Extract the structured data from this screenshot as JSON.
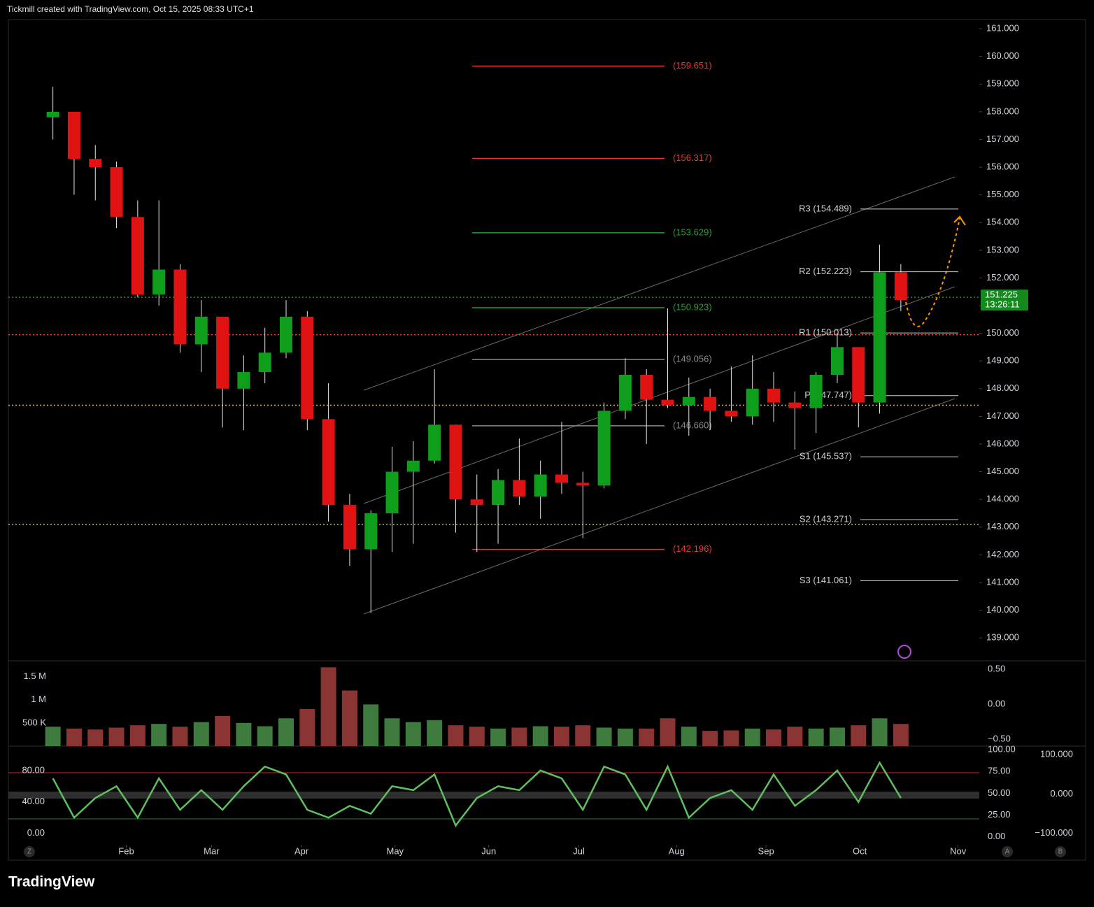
{
  "header": "Tickmill created with TradingView.com, Oct 15, 2025 08:33 UTC+1",
  "logo": "TradingView",
  "buttons": [
    "Z",
    "A",
    "B"
  ],
  "chart_data": [
    {
      "type": "candlestick",
      "up_color": "#0f9d1c",
      "down_color": "#e01212",
      "xlim": [
        -2.1,
        43.7
      ],
      "xticks": [
        {
          "value": 3.46,
          "label": "Feb"
        },
        {
          "value": 7.48,
          "label": "Mar"
        },
        {
          "value": 11.73,
          "label": "Apr"
        },
        {
          "value": 16.14,
          "label": "May"
        },
        {
          "value": 20.56,
          "label": "Jun"
        },
        {
          "value": 24.81,
          "label": "Jul"
        },
        {
          "value": 29.42,
          "label": "Aug"
        },
        {
          "value": 33.64,
          "label": "Sep"
        },
        {
          "value": 38.06,
          "label": "Oct"
        },
        {
          "value": 42.7,
          "label": "Nov"
        }
      ],
      "ylim": [
        138.17,
        161.33
      ],
      "yticks": [
        {
          "value": 139,
          "label": "139.000"
        },
        {
          "value": 140,
          "label": "140.000"
        },
        {
          "value": 141,
          "label": "141.000"
        },
        {
          "value": 142,
          "label": "142.000"
        },
        {
          "value": 143,
          "label": "143.000"
        },
        {
          "value": 144,
          "label": "144.000"
        },
        {
          "value": 145,
          "label": "145.000"
        },
        {
          "value": 146,
          "label": "146.000"
        },
        {
          "value": 147,
          "label": "147.000"
        },
        {
          "value": 148,
          "label": "148.000"
        },
        {
          "value": 149,
          "label": "149.000"
        },
        {
          "value": 150,
          "label": "150.000"
        },
        {
          "value": 151,
          "label": "151.000"
        },
        {
          "value": 152,
          "label": "152.000"
        },
        {
          "value": 153,
          "label": "153.000"
        },
        {
          "value": 154,
          "label": "154.000"
        },
        {
          "value": 155,
          "label": "155.000"
        },
        {
          "value": 156,
          "label": "156.000"
        },
        {
          "value": 157,
          "label": "157.000"
        },
        {
          "value": 158,
          "label": "158.000"
        },
        {
          "value": 159,
          "label": "159.000"
        },
        {
          "value": 160,
          "label": "160.000"
        },
        {
          "value": 161,
          "label": "161.000"
        }
      ],
      "open": [
        157.8,
        158.0,
        156.3,
        156.0,
        154.2,
        151.4,
        152.3,
        149.6,
        150.6,
        148.0,
        148.6,
        149.3,
        150.6,
        146.9,
        143.8,
        142.2,
        143.5,
        145.0,
        145.4,
        146.7,
        144.0,
        143.8,
        144.7,
        144.1,
        144.9,
        144.6,
        144.5,
        147.2,
        148.5,
        147.6,
        147.4,
        147.7,
        147.2,
        147.0,
        148.0,
        147.5,
        147.3,
        148.5,
        149.5,
        147.5,
        152.2
      ],
      "high": [
        158.9,
        158.0,
        156.8,
        156.2,
        154.8,
        154.8,
        152.5,
        151.2,
        150.6,
        149.2,
        150.2,
        151.2,
        150.8,
        148.2,
        144.2,
        143.6,
        145.9,
        146.1,
        148.7,
        146.7,
        144.9,
        145.1,
        146.2,
        145.4,
        146.8,
        145.0,
        147.5,
        149.1,
        148.7,
        150.9,
        148.4,
        148.0,
        148.8,
        149.2,
        148.6,
        147.9,
        148.6,
        150.0,
        149.5,
        153.2,
        152.5
      ],
      "low": [
        157.0,
        155.0,
        154.8,
        153.8,
        151.3,
        151.0,
        149.3,
        148.6,
        146.6,
        146.5,
        148.2,
        149.1,
        146.5,
        143.2,
        141.6,
        139.9,
        142.1,
        142.4,
        145.3,
        142.8,
        142.1,
        142.4,
        143.8,
        143.3,
        144.2,
        142.6,
        144.4,
        146.9,
        146.0,
        147.3,
        146.3,
        146.5,
        146.8,
        146.7,
        146.8,
        145.8,
        146.4,
        148.2,
        146.6,
        147.1,
        150.8
      ],
      "close": [
        158.0,
        156.3,
        156.0,
        154.2,
        151.4,
        152.3,
        149.6,
        150.6,
        148.0,
        148.6,
        149.3,
        150.6,
        146.9,
        143.8,
        142.2,
        143.5,
        145.0,
        145.4,
        146.7,
        144.0,
        143.8,
        144.7,
        144.1,
        144.9,
        144.6,
        144.5,
        147.2,
        148.5,
        147.6,
        147.4,
        147.7,
        147.2,
        147.0,
        148.0,
        147.5,
        147.3,
        148.5,
        149.5,
        147.5,
        152.2,
        151.2
      ],
      "fib_levels": [
        {
          "value": 159.651,
          "label": "(159.651)",
          "color": "#e53935"
        },
        {
          "value": 156.317,
          "label": "(156.317)",
          "color": "#e53935"
        },
        {
          "value": 153.629,
          "label": "(153.629)",
          "color": "#2e9b3a"
        },
        {
          "value": 150.923,
          "label": "(150.923)",
          "color": "#2e9b3a"
        },
        {
          "value": 149.056,
          "label": "(149.056)",
          "color": "#8a8a8a"
        },
        {
          "value": 146.66,
          "label": "(146.660)",
          "color": "#8a8a8a"
        },
        {
          "value": 142.196,
          "label": "(142.196)",
          "color": "#e53935"
        }
      ],
      "pivots": [
        {
          "value": 154.489,
          "label": "R3 (154.489)"
        },
        {
          "value": 152.223,
          "label": "R2 (152.223)"
        },
        {
          "value": 150.013,
          "label": "R1 (150.013)"
        },
        {
          "value": 147.747,
          "label": "P (147.747)"
        },
        {
          "value": 145.537,
          "label": "S1 (145.537)"
        },
        {
          "value": 143.271,
          "label": "S2 (143.271)"
        },
        {
          "value": 141.061,
          "label": "S3 (141.061)"
        }
      ],
      "pivot_color": "#cfcfcf",
      "hlines": [
        {
          "value": 151.3,
          "color": "#1f9a2f"
        },
        {
          "value": 149.95,
          "color": "#ff3b3b"
        },
        {
          "value": 147.4,
          "color": "#ffa726"
        },
        {
          "value": 143.1,
          "color": "#9acd32"
        }
      ],
      "last_price": 151.225,
      "countdown": "13:26:11",
      "badge_color": "#138a1c"
    },
    {
      "type": "bar",
      "up_color": "#3f7a3f",
      "down_color": "#8a3434",
      "ylim": [
        0,
        1840000
      ],
      "yticks": [
        {
          "value": 500000,
          "label": "500 K"
        },
        {
          "value": 1000000,
          "label": "1 M"
        },
        {
          "value": 1500000,
          "label": "1.5 M"
        }
      ],
      "y2lim": [
        -0.6,
        0.62
      ],
      "y2ticks": [
        {
          "value": -0.5,
          "label": "−0.50"
        },
        {
          "value": 0,
          "label": "0.00"
        },
        {
          "value": 0.5,
          "label": "0.50"
        }
      ],
      "values": [
        420000,
        380000,
        360000,
        400000,
        450000,
        480000,
        420000,
        520000,
        650000,
        500000,
        430000,
        600000,
        800000,
        1700000,
        1200000,
        900000,
        600000,
        520000,
        560000,
        450000,
        420000,
        380000,
        400000,
        430000,
        420000,
        450000,
        400000,
        380000,
        380000,
        600000,
        420000,
        330000,
        340000,
        380000,
        360000,
        420000,
        380000,
        400000,
        450000,
        600000,
        480000
      ]
    },
    {
      "type": "line",
      "color": "#5fbf5f",
      "ylim": [
        -14.5,
        111
      ],
      "yticks": [
        {
          "value": 0,
          "label": "0.00"
        },
        {
          "value": 40,
          "label": "40.00"
        },
        {
          "value": 80,
          "label": "80.00"
        }
      ],
      "y2lim": [
        -9,
        104
      ],
      "y2ticks": [
        {
          "value": 0,
          "label": "0.00"
        },
        {
          "value": 25,
          "label": "25.00"
        },
        {
          "value": 50,
          "label": "50.00"
        },
        {
          "value": 75,
          "label": "75.00"
        },
        {
          "value": 100,
          "label": "100.00"
        }
      ],
      "y3lim": [
        -129,
        121.8
      ],
      "y3ticks": [
        {
          "value": -100,
          "label": "−100.000"
        },
        {
          "value": 0,
          "label": "0.000"
        },
        {
          "value": 100,
          "label": "100.000"
        }
      ],
      "values": [
        70,
        20,
        45,
        60,
        20,
        70,
        30,
        55,
        30,
        60,
        85,
        75,
        30,
        20,
        35,
        25,
        60,
        55,
        75,
        10,
        45,
        60,
        55,
        80,
        70,
        30,
        85,
        75,
        30,
        85,
        20,
        45,
        55,
        30,
        75,
        35,
        55,
        80,
        40,
        90,
        45
      ]
    }
  ]
}
